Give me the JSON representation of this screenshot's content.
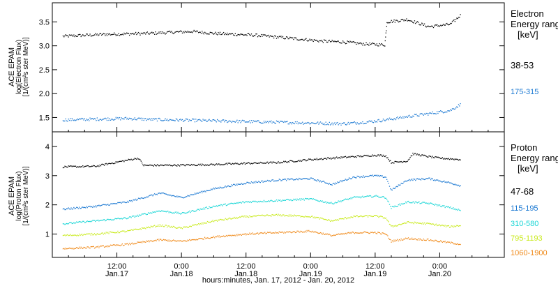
{
  "figure": {
    "xlabel": "hours:minutes, Jan. 17, 2012 - Jan. 20, 2012",
    "x_ticks": [
      {
        "t": 12,
        "time": "12:00",
        "date": "Jan.17"
      },
      {
        "t": 24,
        "time": "0:00",
        "date": "Jan.18"
      },
      {
        "t": 36,
        "time": "12:00",
        "date": "Jan.18"
      },
      {
        "t": 48,
        "time": "0:00",
        "date": "Jan.19"
      },
      {
        "t": 60,
        "time": "12:00",
        "date": "Jan.19"
      },
      {
        "t": 72,
        "time": "0:00",
        "date": "Jan.20"
      }
    ]
  },
  "chart_data": [
    {
      "type": "scatter",
      "ylabel_lines": [
        "ACE EPAM",
        "log(Electron Flux)",
        "[1/(cm²s ster MeV)]"
      ],
      "ylim": [
        1.2,
        3.9
      ],
      "xlim": [
        0,
        84
      ],
      "y_ticks": [
        "1.5",
        "2.0",
        "2.5",
        "3.0",
        "3.5"
      ],
      "legend_title_lines": [
        "Electron",
        "Energy ranges",
        "[keV]"
      ],
      "colors": [
        "#000000",
        "#1a78d2"
      ],
      "series": [
        {
          "name": "38-53",
          "color": "#000000",
          "x": [
            2,
            6,
            10,
            14,
            18,
            22,
            26,
            30,
            34,
            38,
            42,
            46,
            50,
            54,
            58,
            61.8,
            62.2,
            66,
            70,
            74,
            76
          ],
          "y": [
            3.2,
            3.22,
            3.24,
            3.25,
            3.26,
            3.28,
            3.3,
            3.26,
            3.24,
            3.22,
            3.18,
            3.14,
            3.1,
            3.08,
            3.04,
            3.02,
            3.5,
            3.55,
            3.4,
            3.45,
            3.65
          ]
        },
        {
          "name": "175-315",
          "color": "#1a78d2",
          "x": [
            2,
            6,
            10,
            14,
            18,
            22,
            26,
            30,
            34,
            38,
            42,
            46,
            50,
            54,
            58,
            62,
            66,
            70,
            74,
            76
          ],
          "y": [
            1.45,
            1.46,
            1.47,
            1.48,
            1.46,
            1.45,
            1.44,
            1.43,
            1.42,
            1.41,
            1.4,
            1.39,
            1.38,
            1.37,
            1.4,
            1.45,
            1.52,
            1.58,
            1.65,
            1.78
          ]
        }
      ]
    },
    {
      "type": "scatter",
      "ylabel_lines": [
        "ACE EPAM",
        "log(Proton Flux)",
        "[1/(cm²s ster MeV)]"
      ],
      "ylim": [
        0.2,
        4.5
      ],
      "xlim": [
        0,
        84
      ],
      "y_ticks": [
        "1",
        "2",
        "3",
        "4"
      ],
      "legend_title_lines": [
        "Proton",
        "Energy ranges",
        "[keV]"
      ],
      "colors": [
        "#000000",
        "#1a78d2",
        "#1ad6d6",
        "#c8ea1a",
        "#f08a1a"
      ],
      "series": [
        {
          "name": "47-68",
          "color": "#000000",
          "x": [
            2,
            8,
            16,
            17,
            24,
            30,
            36,
            42,
            48,
            52,
            56,
            60,
            62,
            63,
            66,
            67,
            70,
            72,
            76
          ],
          "y": [
            3.3,
            3.32,
            3.6,
            3.35,
            3.36,
            3.38,
            3.42,
            3.45,
            3.55,
            3.6,
            3.65,
            3.7,
            3.68,
            3.45,
            3.5,
            3.75,
            3.65,
            3.6,
            3.55
          ]
        },
        {
          "name": "115-195",
          "color": "#1a78d2",
          "x": [
            2,
            8,
            14,
            20,
            24,
            30,
            36,
            42,
            48,
            52,
            56,
            60,
            62,
            63,
            66,
            70,
            74,
            76
          ],
          "y": [
            1.85,
            1.95,
            2.1,
            2.4,
            2.25,
            2.55,
            2.75,
            2.85,
            2.9,
            2.7,
            2.95,
            3.0,
            2.95,
            2.5,
            2.85,
            2.9,
            2.75,
            2.65
          ]
        },
        {
          "name": "310-580",
          "color": "#1ad6d6",
          "x": [
            2,
            8,
            14,
            20,
            24,
            30,
            36,
            42,
            48,
            52,
            56,
            60,
            62,
            63,
            66,
            70,
            74,
            76
          ],
          "y": [
            1.35,
            1.45,
            1.55,
            1.8,
            1.7,
            1.95,
            2.1,
            2.15,
            2.2,
            2.05,
            2.25,
            2.3,
            2.25,
            1.9,
            2.1,
            2.05,
            1.9,
            1.8
          ]
        },
        {
          "name": "795-1193",
          "color": "#c8ea1a",
          "x": [
            2,
            8,
            14,
            20,
            24,
            30,
            36,
            42,
            48,
            52,
            56,
            60,
            62,
            63,
            66,
            70,
            74,
            76
          ],
          "y": [
            0.95,
            1.0,
            1.1,
            1.3,
            1.2,
            1.45,
            1.6,
            1.65,
            1.6,
            1.45,
            1.6,
            1.62,
            1.55,
            1.25,
            1.4,
            1.35,
            1.25,
            1.3
          ]
        },
        {
          "name": "1060-1900",
          "color": "#f08a1a",
          "x": [
            2,
            8,
            14,
            20,
            24,
            30,
            36,
            42,
            48,
            52,
            56,
            60,
            62,
            63,
            66,
            70,
            74,
            76
          ],
          "y": [
            0.5,
            0.55,
            0.65,
            0.8,
            0.75,
            0.9,
            1.0,
            1.05,
            1.1,
            0.95,
            1.05,
            1.05,
            1.0,
            0.75,
            0.85,
            0.8,
            0.7,
            0.65
          ]
        }
      ]
    }
  ]
}
